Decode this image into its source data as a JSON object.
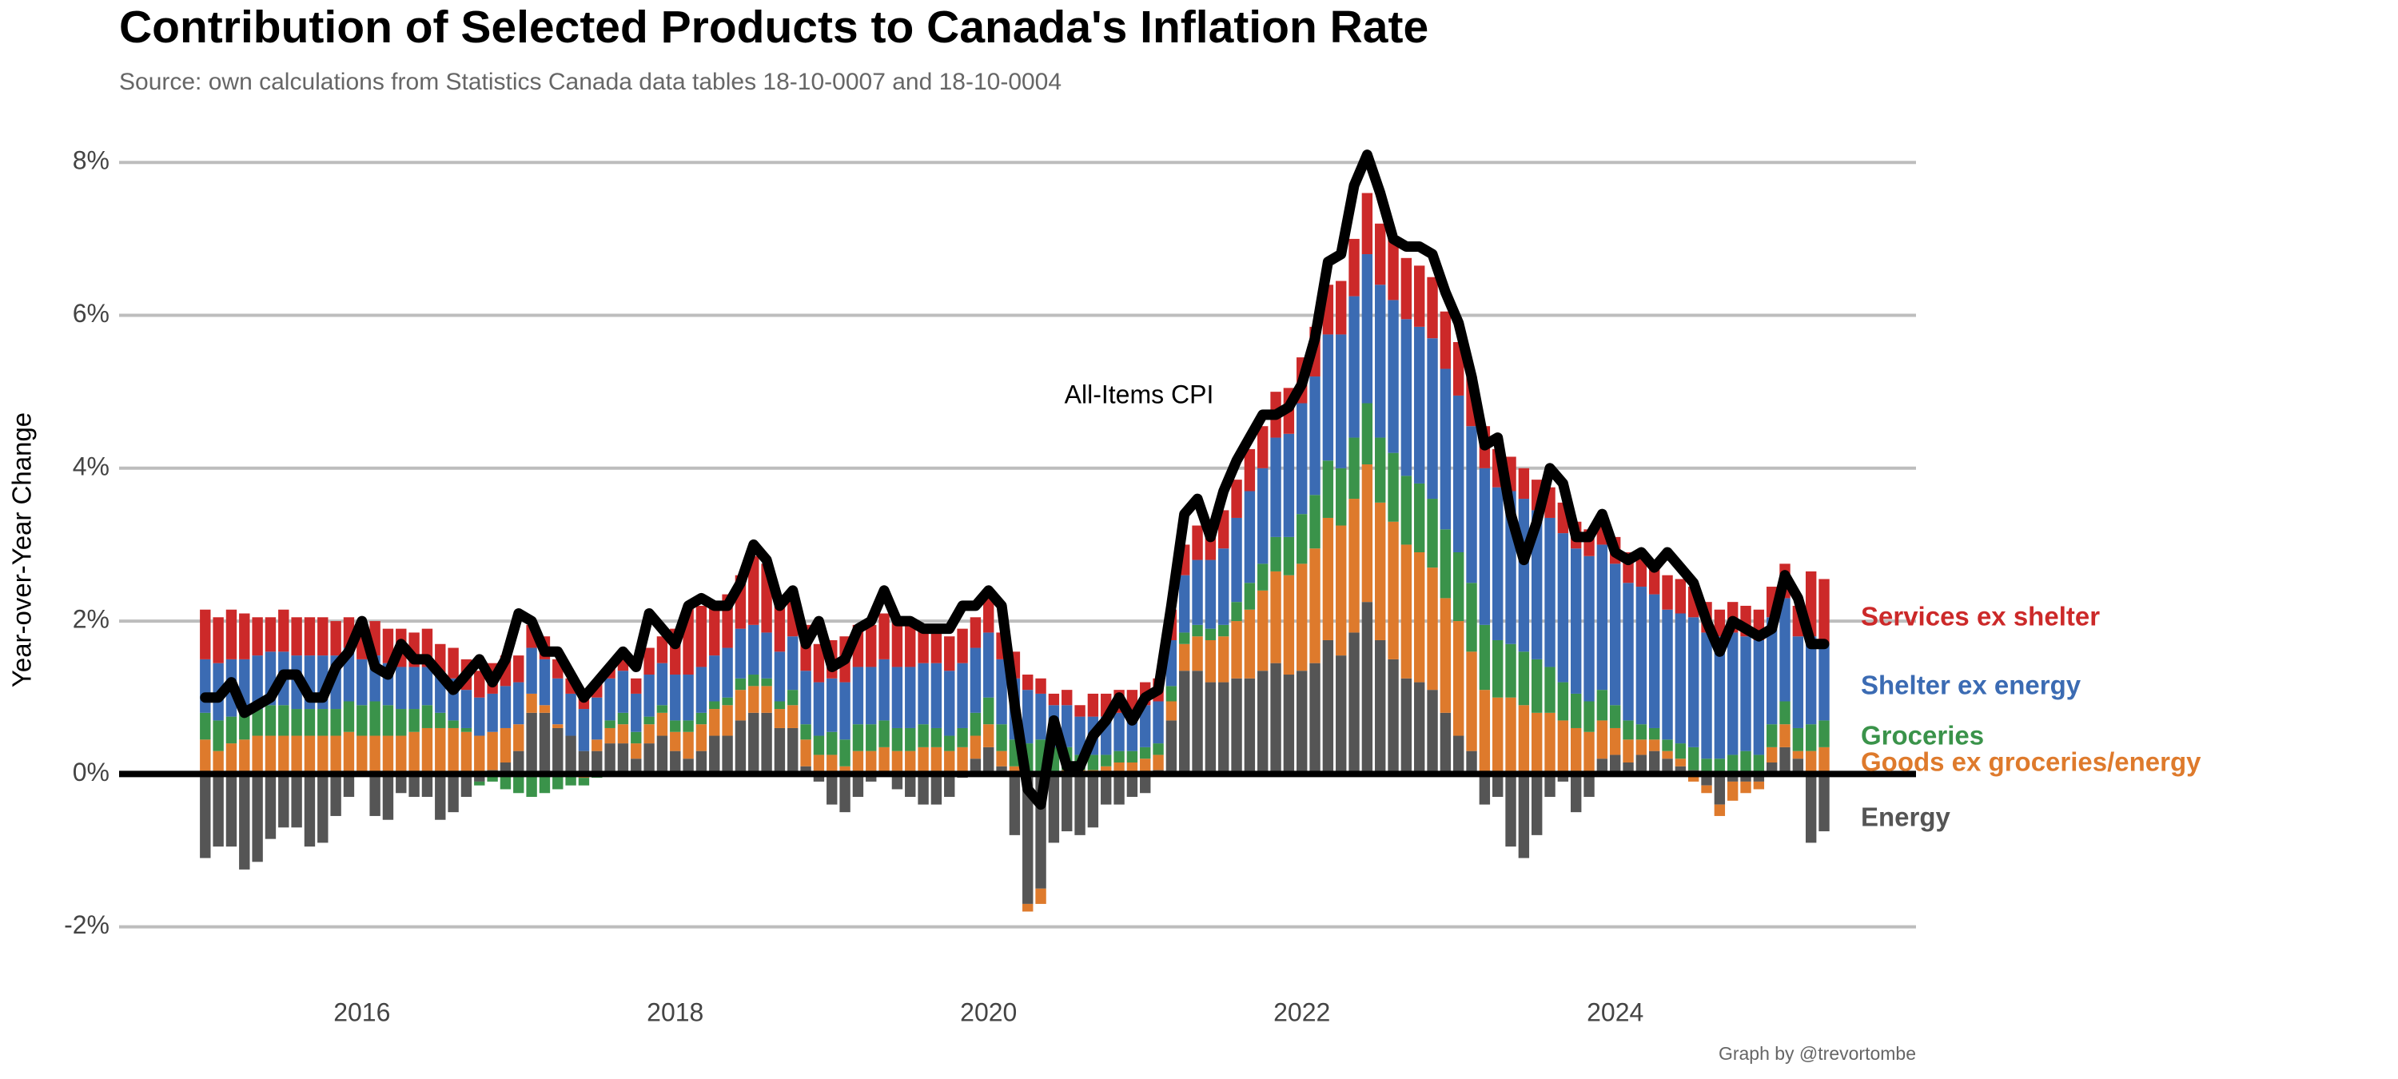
{
  "chart_data": {
    "type": "stacked_bar_line",
    "title": "Contribution of Selected Products to Canada's Inflation Rate",
    "subtitle": "Source: own calculations from Statistics Canada data tables 18-10-0007 and 18-10-0004",
    "y_label": "Year-over-Year Change",
    "caption": "Graph by @trevortombe",
    "x": [
      "2015-01",
      "2015-02",
      "2015-03",
      "2015-04",
      "2015-05",
      "2015-06",
      "2015-07",
      "2015-08",
      "2015-09",
      "2015-10",
      "2015-11",
      "2015-12",
      "2016-01",
      "2016-02",
      "2016-03",
      "2016-04",
      "2016-05",
      "2016-06",
      "2016-07",
      "2016-08",
      "2016-09",
      "2016-10",
      "2016-11",
      "2016-12",
      "2017-01",
      "2017-02",
      "2017-03",
      "2017-04",
      "2017-05",
      "2017-06",
      "2017-07",
      "2017-08",
      "2017-09",
      "2017-10",
      "2017-11",
      "2017-12",
      "2018-01",
      "2018-02",
      "2018-03",
      "2018-04",
      "2018-05",
      "2018-06",
      "2018-07",
      "2018-08",
      "2018-09",
      "2018-10",
      "2018-11",
      "2018-12",
      "2019-01",
      "2019-02",
      "2019-03",
      "2019-04",
      "2019-05",
      "2019-06",
      "2019-07",
      "2019-08",
      "2019-09",
      "2019-10",
      "2019-11",
      "2019-12",
      "2020-01",
      "2020-02",
      "2020-03",
      "2020-04",
      "2020-05",
      "2020-06",
      "2020-07",
      "2020-08",
      "2020-09",
      "2020-10",
      "2020-11",
      "2020-12",
      "2021-01",
      "2021-02",
      "2021-03",
      "2021-04",
      "2021-05",
      "2021-06",
      "2021-07",
      "2021-08",
      "2021-09",
      "2021-10",
      "2021-11",
      "2021-12",
      "2022-01",
      "2022-02",
      "2022-03",
      "2022-04",
      "2022-05",
      "2022-06",
      "2022-07",
      "2022-08",
      "2022-09",
      "2022-10",
      "2022-11",
      "2022-12",
      "2023-01",
      "2023-02",
      "2023-03",
      "2023-04",
      "2023-05",
      "2023-06",
      "2023-07",
      "2023-08",
      "2023-09",
      "2023-10",
      "2023-11",
      "2023-12",
      "2024-01",
      "2024-02",
      "2024-03",
      "2024-04",
      "2024-05",
      "2024-06",
      "2024-07",
      "2024-08",
      "2024-09",
      "2024-10",
      "2024-11",
      "2024-12",
      "2025-01",
      "2025-02",
      "2025-03",
      "2025-04",
      "2025-05"
    ],
    "series": [
      {
        "name": "Energy",
        "color": "#555555",
        "values": [
          -1.1,
          -0.95,
          -0.95,
          -1.25,
          -1.15,
          -0.85,
          -0.7,
          -0.7,
          -0.95,
          -0.9,
          -0.55,
          -0.3,
          0,
          -0.55,
          -0.6,
          -0.25,
          -0.3,
          -0.3,
          -0.6,
          -0.5,
          -0.3,
          -0.1,
          0.05,
          0.15,
          0.3,
          0.8,
          0.8,
          0.6,
          0.5,
          0.3,
          0.3,
          0.4,
          0.4,
          0.2,
          0.4,
          0.5,
          0.3,
          0.2,
          0.3,
          0.5,
          0.5,
          0.7,
          0.8,
          0.8,
          0.6,
          0.6,
          0.1,
          -0.1,
          -0.4,
          -0.5,
          -0.3,
          -0.1,
          0,
          -0.2,
          -0.3,
          -0.4,
          -0.4,
          -0.3,
          -0.05,
          0.2,
          0.35,
          0.1,
          -0.8,
          -1.7,
          -1.5,
          -0.9,
          -0.75,
          -0.8,
          -0.7,
          -0.4,
          -0.4,
          -0.3,
          -0.25,
          0.05,
          0.7,
          1.35,
          1.35,
          1.2,
          1.2,
          1.25,
          1.25,
          1.35,
          1.45,
          1.3,
          1.35,
          1.45,
          1.75,
          1.55,
          1.85,
          2.25,
          1.75,
          1.5,
          1.25,
          1.2,
          1.1,
          0.8,
          0.5,
          0.3,
          -0.4,
          -0.3,
          -0.95,
          -1.1,
          -0.8,
          -0.3,
          -0.1,
          -0.5,
          -0.3,
          0.2,
          0.25,
          0.15,
          0.25,
          0.3,
          0.2,
          0.1,
          0.05,
          -0.15,
          -0.4,
          -0.1,
          -0.1,
          -0.1,
          0.15,
          0.35,
          0.2,
          -0.9,
          -0.75
        ]
      },
      {
        "name": "Goods ex groceries/energy",
        "color": "#de7a2c",
        "values": [
          0.45,
          0.3,
          0.4,
          0.45,
          0.5,
          0.5,
          0.5,
          0.5,
          0.5,
          0.5,
          0.5,
          0.55,
          0.5,
          0.5,
          0.5,
          0.5,
          0.55,
          0.6,
          0.6,
          0.6,
          0.55,
          0.5,
          0.5,
          0.45,
          0.35,
          0.25,
          0.1,
          0.05,
          0,
          -0.05,
          0.15,
          0.2,
          0.25,
          0.2,
          0.25,
          0.3,
          0.25,
          0.35,
          0.35,
          0.35,
          0.4,
          0.4,
          0.35,
          0.35,
          0.25,
          0.3,
          0.35,
          0.25,
          0.25,
          0.1,
          0.3,
          0.3,
          0.35,
          0.3,
          0.3,
          0.35,
          0.35,
          0.3,
          0.35,
          0.3,
          0.3,
          0.2,
          0.1,
          -0.1,
          -0.2,
          0,
          0.05,
          0.05,
          0.05,
          0.1,
          0.15,
          0.15,
          0.2,
          0.2,
          0.25,
          0.35,
          0.45,
          0.55,
          0.6,
          0.75,
          0.9,
          1.05,
          1.2,
          1.3,
          1.4,
          1.5,
          1.6,
          1.7,
          1.75,
          1.8,
          1.8,
          1.8,
          1.75,
          1.7,
          1.6,
          1.5,
          1.5,
          1.3,
          1.1,
          1.0,
          1.0,
          0.9,
          0.8,
          0.8,
          0.7,
          0.6,
          0.55,
          0.5,
          0.35,
          0.3,
          0.2,
          0.15,
          0.1,
          0.1,
          -0.1,
          -0.1,
          -0.15,
          -0.25,
          -0.15,
          -0.1,
          0.2,
          0.3,
          0.1,
          0.3,
          0.35
        ]
      },
      {
        "name": "Groceries",
        "color": "#3a934a",
        "values": [
          0.35,
          0.4,
          0.35,
          0.35,
          0.35,
          0.4,
          0.4,
          0.35,
          0.35,
          0.35,
          0.35,
          0.4,
          0.4,
          0.45,
          0.4,
          0.35,
          0.3,
          0.3,
          0.2,
          0.1,
          0.05,
          -0.05,
          -0.1,
          -0.2,
          -0.25,
          -0.3,
          -0.25,
          -0.2,
          -0.15,
          -0.1,
          -0.05,
          0.1,
          0.15,
          0.15,
          0.1,
          0.1,
          0.15,
          0.15,
          0.15,
          0.1,
          0.1,
          0.15,
          0.15,
          0.1,
          0.1,
          0.2,
          0.2,
          0.25,
          0.3,
          0.35,
          0.35,
          0.35,
          0.35,
          0.3,
          0.3,
          0.3,
          0.25,
          0.2,
          0.25,
          0.3,
          0.35,
          0.35,
          0.35,
          0.4,
          0.45,
          0.35,
          0.3,
          0.2,
          0.2,
          0.15,
          0.15,
          0.15,
          0.15,
          0.15,
          0.2,
          0.15,
          0.15,
          0.15,
          0.15,
          0.25,
          0.35,
          0.35,
          0.45,
          0.5,
          0.65,
          0.7,
          0.75,
          0.75,
          0.8,
          0.8,
          0.85,
          0.9,
          0.9,
          0.9,
          0.9,
          0.9,
          0.9,
          0.9,
          0.85,
          0.75,
          0.7,
          0.7,
          0.7,
          0.6,
          0.5,
          0.45,
          0.4,
          0.4,
          0.3,
          0.25,
          0.2,
          0.15,
          0.15,
          0.2,
          0.3,
          0.2,
          0.2,
          0.25,
          0.3,
          0.25,
          0.3,
          0.3,
          0.3,
          0.35,
          0.35
        ]
      },
      {
        "name": "Shelter ex energy",
        "color": "#3b6bb3",
        "values": [
          0.7,
          0.75,
          0.75,
          0.7,
          0.7,
          0.7,
          0.7,
          0.7,
          0.7,
          0.7,
          0.7,
          0.7,
          0.6,
          0.6,
          0.55,
          0.55,
          0.55,
          0.5,
          0.5,
          0.55,
          0.5,
          0.5,
          0.5,
          0.55,
          0.55,
          0.6,
          0.6,
          0.6,
          0.55,
          0.55,
          0.55,
          0.55,
          0.55,
          0.5,
          0.55,
          0.55,
          0.6,
          0.6,
          0.6,
          0.6,
          0.65,
          0.65,
          0.65,
          0.6,
          0.65,
          0.7,
          0.7,
          0.7,
          0.7,
          0.75,
          0.75,
          0.75,
          0.8,
          0.8,
          0.8,
          0.8,
          0.85,
          0.85,
          0.85,
          0.85,
          0.85,
          0.85,
          0.8,
          0.7,
          0.6,
          0.55,
          0.55,
          0.5,
          0.5,
          0.5,
          0.5,
          0.5,
          0.55,
          0.55,
          0.6,
          0.75,
          0.85,
          0.9,
          1.0,
          1.1,
          1.2,
          1.25,
          1.3,
          1.35,
          1.45,
          1.55,
          1.65,
          1.75,
          1.85,
          1.95,
          2.0,
          2.0,
          2.05,
          2.05,
          2.1,
          2.1,
          2.05,
          2.05,
          2.05,
          2.0,
          2.0,
          2.0,
          1.95,
          1.95,
          1.95,
          1.9,
          1.9,
          1.9,
          1.85,
          1.8,
          1.8,
          1.75,
          1.7,
          1.7,
          1.7,
          1.65,
          1.6,
          1.6,
          1.5,
          1.5,
          1.4,
          1.35,
          1.2,
          1.15,
          1.0
        ]
      },
      {
        "name": "Services ex shelter",
        "color": "#cc2929",
        "values": [
          0.65,
          0.6,
          0.65,
          0.6,
          0.5,
          0.45,
          0.55,
          0.5,
          0.5,
          0.5,
          0.45,
          0.4,
          0.5,
          0.45,
          0.45,
          0.5,
          0.45,
          0.5,
          0.4,
          0.4,
          0.4,
          0.35,
          0.4,
          0.4,
          0.35,
          0.3,
          0.3,
          0.25,
          0.2,
          0.2,
          0.2,
          0.15,
          0.2,
          0.2,
          0.35,
          0.35,
          0.6,
          0.9,
          0.8,
          0.7,
          0.7,
          0.7,
          0.9,
          0.9,
          0.7,
          0.6,
          0.6,
          0.5,
          0.5,
          0.6,
          0.55,
          0.55,
          0.6,
          0.6,
          0.55,
          0.5,
          0.5,
          0.45,
          0.45,
          0.4,
          0.45,
          0.35,
          0.35,
          0.2,
          0.2,
          0.15,
          0.2,
          0.15,
          0.3,
          0.3,
          0.3,
          0.3,
          0.3,
          0.3,
          0.4,
          0.4,
          0.45,
          0.45,
          0.5,
          0.5,
          0.55,
          0.55,
          0.6,
          0.6,
          0.6,
          0.65,
          0.65,
          0.7,
          0.75,
          0.8,
          0.8,
          0.8,
          0.8,
          0.8,
          0.8,
          0.75,
          0.7,
          0.65,
          0.55,
          0.5,
          0.45,
          0.4,
          0.4,
          0.4,
          0.4,
          0.35,
          0.35,
          0.35,
          0.35,
          0.4,
          0.4,
          0.45,
          0.45,
          0.45,
          0.4,
          0.4,
          0.35,
          0.4,
          0.4,
          0.4,
          0.4,
          0.45,
          0.4,
          0.85,
          0.85
        ]
      }
    ],
    "line_series": {
      "name": "All-Items CPI",
      "color": "#000000",
      "values": [
        1.0,
        1.0,
        1.2,
        0.8,
        0.9,
        1.0,
        1.3,
        1.3,
        1.0,
        1.0,
        1.4,
        1.6,
        2.0,
        1.4,
        1.3,
        1.7,
        1.5,
        1.5,
        1.3,
        1.1,
        1.3,
        1.5,
        1.2,
        1.5,
        2.1,
        2.0,
        1.6,
        1.6,
        1.3,
        1.0,
        1.2,
        1.4,
        1.6,
        1.4,
        2.1,
        1.9,
        1.7,
        2.2,
        2.3,
        2.2,
        2.2,
        2.5,
        3.0,
        2.8,
        2.2,
        2.4,
        1.7,
        2.0,
        1.4,
        1.5,
        1.9,
        2.0,
        2.4,
        2.0,
        2.0,
        1.9,
        1.9,
        1.9,
        2.2,
        2.2,
        2.4,
        2.2,
        0.9,
        -0.2,
        -0.4,
        0.7,
        0.1,
        0.1,
        0.5,
        0.7,
        1.0,
        0.7,
        1.0,
        1.1,
        2.2,
        3.4,
        3.6,
        3.1,
        3.7,
        4.1,
        4.4,
        4.7,
        4.7,
        4.8,
        5.1,
        5.7,
        6.7,
        6.8,
        7.7,
        8.1,
        7.6,
        7.0,
        6.9,
        6.9,
        6.8,
        6.3,
        5.9,
        5.2,
        4.3,
        4.4,
        3.4,
        2.8,
        3.3,
        4.0,
        3.8,
        3.1,
        3.1,
        3.4,
        2.9,
        2.8,
        2.9,
        2.7,
        2.9,
        2.7,
        2.5,
        2.0,
        1.6,
        2.0,
        1.9,
        1.8,
        1.9,
        2.6,
        2.3,
        1.7,
        1.7
      ]
    },
    "xlim": [
      2014.45,
      2025.92
    ],
    "xticks": [
      2016,
      2018,
      2020,
      2022,
      2024
    ],
    "ylim": [
      -2.6,
      8.4
    ],
    "yticks": [
      {
        "value": -2,
        "label": "-2%"
      },
      {
        "value": 0,
        "label": "0%"
      },
      {
        "value": 2,
        "label": "2%"
      },
      {
        "value": 4,
        "label": "4%"
      },
      {
        "value": 6,
        "label": "6%"
      },
      {
        "value": 8,
        "label": "8%"
      }
    ],
    "grid": true,
    "legend": "right"
  }
}
